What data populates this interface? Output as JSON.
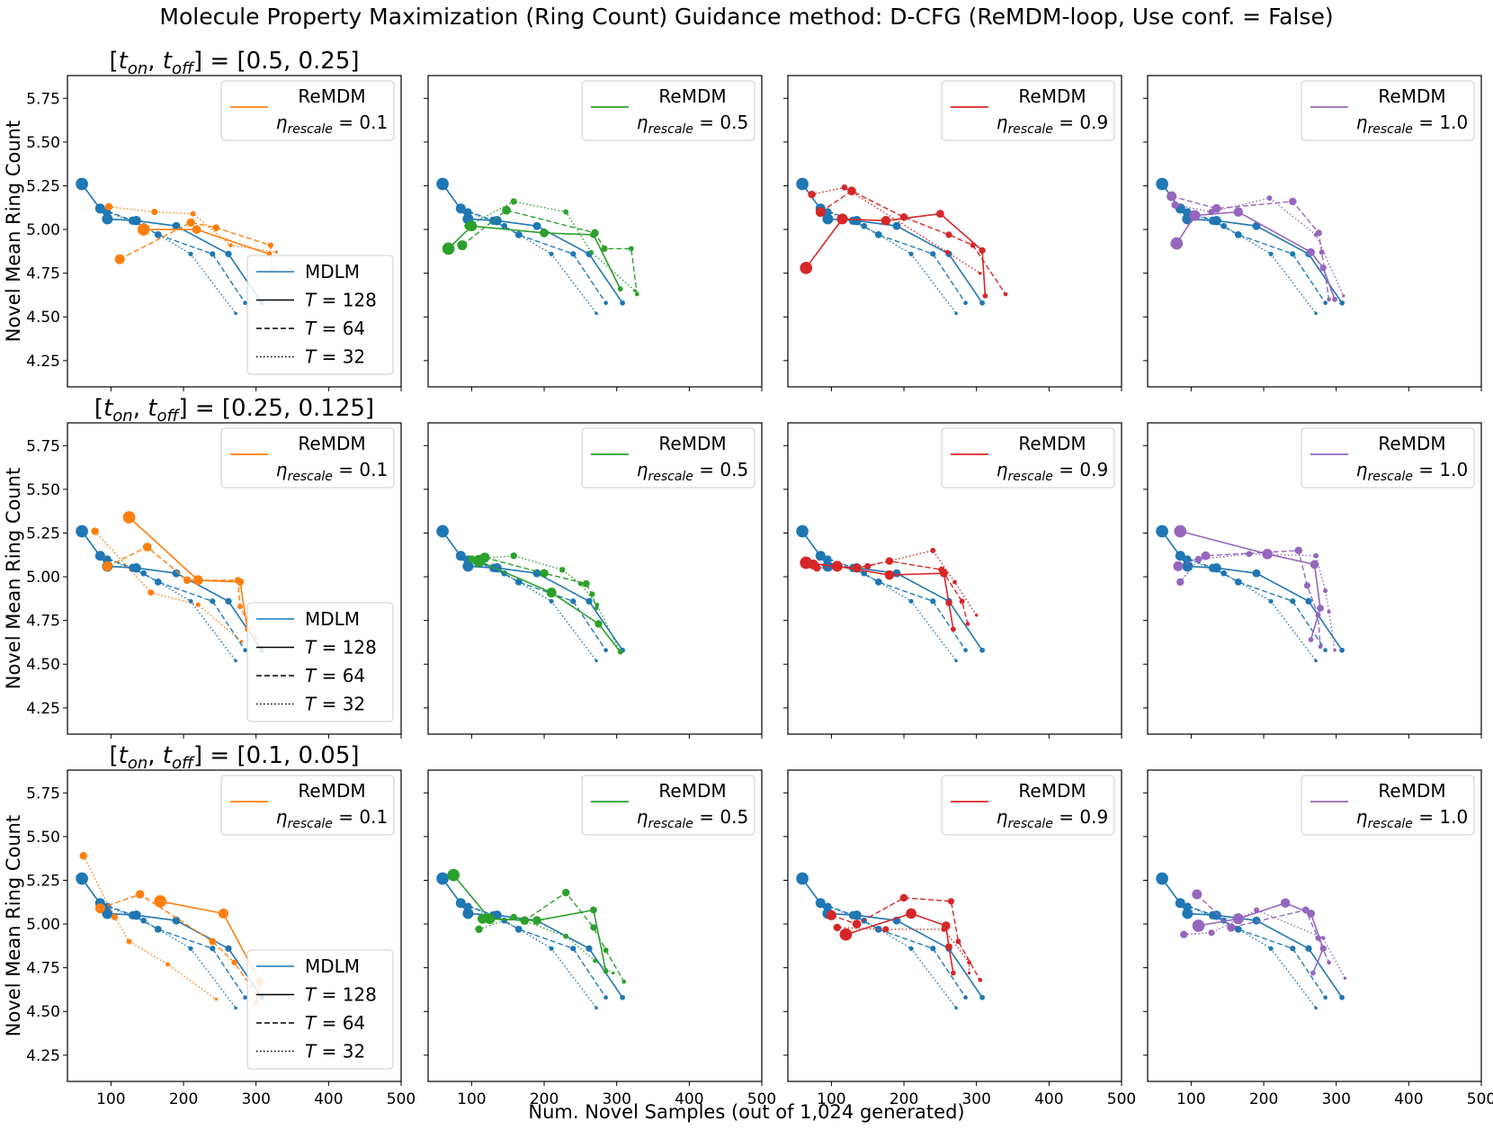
{
  "title": "Molecule Property Maximization (Ring Count) Guidance method: D-CFG (ReMDM-loop, Use conf. = False)",
  "xlabel": "Num. Novel Samples (out of 1,024 generated)",
  "ylabel": "Novel Mean Ring Count",
  "row_titles": [
    "[t_on, t_off] = [0.5, 0.25]",
    "[t_on, t_off] = [0.25, 0.125]",
    "[t_on, t_off] = [0.1, 0.05]"
  ],
  "legend_main": {
    "series": "MDLM",
    "t128": "T = 128",
    "t64": "T = 64",
    "t32": "T = 32"
  },
  "legend_remdm": {
    "name": "ReMDM",
    "eta_prefix": "η_rescale = "
  },
  "etas": [
    "0.1",
    "0.5",
    "0.9",
    "1.0"
  ],
  "colors": {
    "mdlm": "#1f77b4",
    "eta_0.1": "#ff7f0e",
    "eta_0.5": "#2ca02c",
    "eta_0.9": "#d62728",
    "eta_1.0": "#9467bd"
  },
  "chart_data": {
    "type": "line",
    "xlim": [
      40,
      500
    ],
    "ylim": [
      4.1,
      5.88
    ],
    "xticks": [
      100,
      200,
      300,
      400,
      500
    ],
    "yticks": [
      "4.25",
      "4.50",
      "4.75",
      "5.00",
      "5.25",
      "5.50",
      "5.75"
    ],
    "mdlm": {
      "T128": [
        [
          60,
          5.26
        ],
        [
          95,
          5.06
        ],
        [
          135,
          5.05
        ],
        [
          190,
          5.02
        ],
        [
          262,
          4.86
        ],
        [
          308,
          4.58
        ]
      ],
      "T64": [
        [
          85,
          5.12
        ],
        [
          130,
          5.05
        ],
        [
          165,
          4.97
        ],
        [
          240,
          4.86
        ],
        [
          285,
          4.58
        ]
      ],
      "T32": [
        [
          95,
          5.1
        ],
        [
          145,
          5.02
        ],
        [
          210,
          4.86
        ],
        [
          272,
          4.52
        ]
      ]
    },
    "remdm": {
      "row1": {
        "0.1": {
          "T128": [
            [
              145,
              5.0
            ],
            [
              218,
              5.0
            ],
            [
              318,
              4.86
            ]
          ],
          "T64": [
            [
              112,
              4.83
            ],
            [
              210,
              5.04
            ],
            [
              245,
              5.01
            ],
            [
              320,
              4.91
            ],
            [
              322,
              4.77
            ]
          ],
          "T32": [
            [
              97,
              5.13
            ],
            [
              160,
              5.1
            ],
            [
              213,
              5.09
            ],
            [
              265,
              4.91
            ],
            [
              328,
              4.87
            ]
          ]
        },
        "0.5": {
          "T128": [
            [
              68,
              4.89
            ],
            [
              100,
              5.02
            ],
            [
              200,
              4.98
            ],
            [
              268,
              4.97
            ],
            [
              305,
              4.66
            ]
          ],
          "T64": [
            [
              87,
              4.91
            ],
            [
              148,
              5.11
            ],
            [
              270,
              4.98
            ],
            [
              283,
              4.89
            ],
            [
              320,
              4.89
            ],
            [
              328,
              4.63
            ]
          ],
          "T32": [
            [
              95,
              5.02
            ],
            [
              158,
              5.16
            ],
            [
              230,
              5.1
            ],
            [
              265,
              4.87
            ],
            [
              325,
              4.65
            ]
          ]
        },
        "0.9": {
          "T128": [
            [
              65,
              4.78
            ],
            [
              115,
              5.06
            ],
            [
              175,
              5.05
            ],
            [
              250,
              5.09
            ],
            [
              308,
              4.88
            ],
            [
              312,
              4.62
            ]
          ],
          "T64": [
            [
              85,
              5.1
            ],
            [
              128,
              5.22
            ],
            [
              200,
              5.07
            ],
            [
              262,
              4.97
            ],
            [
              295,
              4.91
            ],
            [
              340,
              4.63
            ]
          ],
          "T32": [
            [
              73,
              5.2
            ],
            [
              118,
              5.24
            ],
            [
              260,
              4.87
            ],
            [
              305,
              4.75
            ]
          ]
        },
        "1.0": {
          "T128": [
            [
              80,
              4.92
            ],
            [
              105,
              5.08
            ],
            [
              165,
              5.1
            ],
            [
              265,
              4.87
            ],
            [
              282,
              4.78
            ],
            [
              298,
              4.6
            ]
          ],
          "T64": [
            [
              73,
              5.19
            ],
            [
              135,
              5.12
            ],
            [
              240,
              5.16
            ],
            [
              276,
              4.98
            ],
            [
              280,
              4.87
            ],
            [
              290,
              4.6
            ]
          ],
          "T32": [
            [
              78,
              5.14
            ],
            [
              128,
              5.1
            ],
            [
              208,
              5.18
            ],
            [
              272,
              4.97
            ],
            [
              310,
              4.62
            ]
          ]
        }
      },
      "row2": {
        "0.1": {
          "T128": [
            [
              125,
              5.34
            ],
            [
              220,
              4.98
            ],
            [
              278,
              4.97
            ],
            [
              288,
              4.7
            ]
          ],
          "T64": [
            [
              95,
              5.06
            ],
            [
              150,
              5.17
            ],
            [
              205,
              4.98
            ],
            [
              275,
              4.98
            ],
            [
              278,
              4.83
            ],
            [
              300,
              4.65
            ]
          ],
          "T32": [
            [
              78,
              5.26
            ],
            [
              155,
              4.91
            ],
            [
              220,
              4.84
            ],
            [
              280,
              4.63
            ]
          ]
        },
        "0.5": {
          "T128": [
            [
              110,
              5.09
            ],
            [
              210,
              4.91
            ],
            [
              275,
              4.73
            ],
            [
              305,
              4.57
            ]
          ],
          "T64": [
            [
              118,
              5.11
            ],
            [
              200,
              5.02
            ],
            [
              258,
              4.96
            ],
            [
              266,
              4.9
            ],
            [
              272,
              4.82
            ]
          ],
          "T32": [
            [
              100,
              5.1
            ],
            [
              158,
              5.12
            ],
            [
              225,
              5.04
            ],
            [
              250,
              4.96
            ],
            [
              273,
              4.84
            ],
            [
              305,
              4.57
            ]
          ]
        },
        "0.9": {
          "T128": [
            [
              65,
              5.08
            ],
            [
              108,
              5.06
            ],
            [
              180,
              5.01
            ],
            [
              255,
              5.02
            ],
            [
              262,
              4.85
            ],
            [
              268,
              4.7
            ]
          ],
          "T64": [
            [
              75,
              5.07
            ],
            [
              135,
              5.05
            ],
            [
              180,
              5.09
            ],
            [
              252,
              5.04
            ],
            [
              280,
              4.86
            ],
            [
              288,
              4.73
            ]
          ],
          "T32": [
            [
              80,
              5.05
            ],
            [
              150,
              5.06
            ],
            [
              240,
              5.15
            ],
            [
              270,
              4.97
            ],
            [
              300,
              4.78
            ]
          ]
        },
        "1.0": {
          "T128": [
            [
              85,
              5.26
            ],
            [
              205,
              5.13
            ],
            [
              270,
              5.07
            ],
            [
              278,
              4.82
            ],
            [
              265,
              4.64
            ]
          ],
          "T64": [
            [
              82,
              5.06
            ],
            [
              120,
              5.12
            ],
            [
              248,
              5.15
            ],
            [
              260,
              4.95
            ],
            [
              275,
              4.78
            ],
            [
              278,
              4.6
            ]
          ],
          "T32": [
            [
              85,
              4.97
            ],
            [
              110,
              5.1
            ],
            [
              180,
              5.13
            ],
            [
              272,
              5.12
            ],
            [
              285,
              4.92
            ],
            [
              290,
              4.8
            ],
            [
              298,
              4.58
            ]
          ]
        }
      },
      "row3": {
        "0.1": {
          "T128": [
            [
              168,
              5.13
            ],
            [
              255,
              5.06
            ],
            [
              305,
              4.67
            ],
            [
              300,
              4.55
            ]
          ],
          "T64": [
            [
              85,
              5.09
            ],
            [
              140,
              5.17
            ],
            [
              240,
              4.9
            ],
            [
              270,
              4.78
            ],
            [
              300,
              4.6
            ]
          ],
          "T32": [
            [
              62,
              5.39
            ],
            [
              105,
              5.04
            ],
            [
              125,
              4.9
            ],
            [
              178,
              4.77
            ],
            [
              245,
              4.57
            ]
          ]
        },
        "0.5": {
          "T128": [
            [
              75,
              5.28
            ],
            [
              125,
              5.03
            ],
            [
              190,
              5.02
            ],
            [
              268,
              5.08
            ],
            [
              285,
              4.73
            ]
          ],
          "T64": [
            [
              115,
              5.03
            ],
            [
              173,
              5.02
            ],
            [
              230,
              5.18
            ],
            [
              268,
              4.98
            ],
            [
              285,
              4.85
            ],
            [
              310,
              4.67
            ]
          ],
          "T32": [
            [
              110,
              4.97
            ],
            [
              158,
              5.04
            ],
            [
              230,
              4.93
            ],
            [
              270,
              4.79
            ],
            [
              295,
              4.72
            ]
          ]
        },
        "0.9": {
          "T128": [
            [
              120,
              4.94
            ],
            [
              210,
              5.06
            ],
            [
              258,
              4.99
            ],
            [
              262,
              4.87
            ],
            [
              268,
              4.72
            ]
          ],
          "T64": [
            [
              100,
              5.05
            ],
            [
              135,
              5.0
            ],
            [
              200,
              5.15
            ],
            [
              265,
              5.13
            ],
            [
              275,
              4.9
            ],
            [
              305,
              4.68
            ]
          ],
          "T32": [
            [
              108,
              4.98
            ],
            [
              175,
              4.97
            ],
            [
              255,
              4.97
            ],
            [
              290,
              4.78
            ],
            [
              290,
              4.72
            ]
          ]
        },
        "1.0": {
          "T128": [
            [
              110,
              4.99
            ],
            [
              165,
              5.03
            ],
            [
              230,
              5.12
            ],
            [
              265,
              5.06
            ],
            [
              282,
              4.86
            ],
            [
              268,
              4.72
            ]
          ],
          "T64": [
            [
              108,
              5.17
            ],
            [
              155,
              4.98
            ],
            [
              258,
              5.08
            ],
            [
              275,
              4.92
            ],
            [
              290,
              4.78
            ]
          ],
          "T32": [
            [
              90,
              4.94
            ],
            [
              128,
              4.95
            ],
            [
              190,
              5.08
            ],
            [
              282,
              4.92
            ],
            [
              312,
              4.69
            ]
          ]
        }
      }
    }
  }
}
